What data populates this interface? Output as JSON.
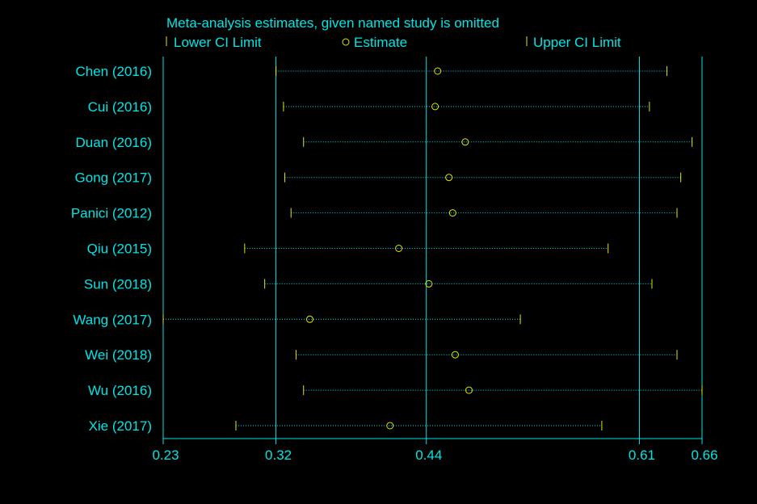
{
  "chart_data": {
    "type": "forest-sensitivity",
    "title": "Meta-analysis estimates, given named study is omitted",
    "legend": {
      "lower": "Lower CI Limit",
      "estimate": "Estimate",
      "upper": "Upper CI Limit"
    },
    "x_range": [
      0.23,
      0.66
    ],
    "x_ticks": [
      0.23,
      0.32,
      0.44,
      0.61,
      0.66
    ],
    "x_tick_labels": [
      "0.23",
      "0.32",
      "0.44",
      "0.61",
      "0.66"
    ],
    "reference_lines": [
      0.32,
      0.44,
      0.61
    ],
    "studies": [
      {
        "name": "Chen (2016)",
        "lower": 0.32,
        "estimate": 0.449,
        "upper": 0.632
      },
      {
        "name": "Cui (2016)",
        "lower": 0.326,
        "estimate": 0.447,
        "upper": 0.618
      },
      {
        "name": "Duan (2016)",
        "lower": 0.342,
        "estimate": 0.471,
        "upper": 0.652
      },
      {
        "name": "Gong (2017)",
        "lower": 0.327,
        "estimate": 0.458,
        "upper": 0.643
      },
      {
        "name": "Panici (2012)",
        "lower": 0.332,
        "estimate": 0.461,
        "upper": 0.64
      },
      {
        "name": "Qiu (2015)",
        "lower": 0.295,
        "estimate": 0.418,
        "upper": 0.585
      },
      {
        "name": "Sun (2018)",
        "lower": 0.311,
        "estimate": 0.442,
        "upper": 0.62
      },
      {
        "name": "Wang (2017)",
        "lower": 0.23,
        "estimate": 0.347,
        "upper": 0.515
      },
      {
        "name": "Wei (2018)",
        "lower": 0.336,
        "estimate": 0.463,
        "upper": 0.64
      },
      {
        "name": "Wu (2016)",
        "lower": 0.342,
        "estimate": 0.474,
        "upper": 0.66
      },
      {
        "name": "Xie (2017)",
        "lower": 0.288,
        "estimate": 0.411,
        "upper": 0.58
      }
    ]
  }
}
